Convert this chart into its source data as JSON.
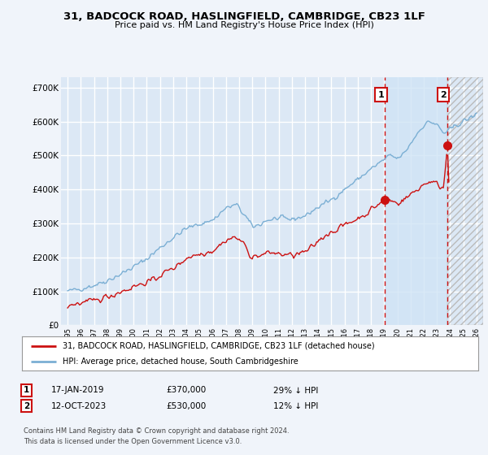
{
  "title1": "31, BADCOCK ROAD, HASLINGFIELD, CAMBRIDGE, CB23 1LF",
  "title2": "Price paid vs. HM Land Registry's House Price Index (HPI)",
  "background_color": "#f0f4fa",
  "plot_bg_color": "#dce8f5",
  "grid_color": "#ffffff",
  "hpi_color": "#7bafd4",
  "price_color": "#cc1111",
  "highlight_color": "#d0e4f5",
  "annotation1_date": "17-JAN-2019",
  "annotation1_price": "£370,000",
  "annotation1_hpi": "29% ↓ HPI",
  "annotation1_year": 2019.05,
  "annotation1_value": 370000,
  "annotation2_date": "12-OCT-2023",
  "annotation2_price": "£530,000",
  "annotation2_hpi": "12% ↓ HPI",
  "annotation2_year": 2023.79,
  "annotation2_value": 530000,
  "legend_label_price": "31, BADCOCK ROAD, HASLINGFIELD, CAMBRIDGE, CB23 1LF (detached house)",
  "legend_label_hpi": "HPI: Average price, detached house, South Cambridgeshire",
  "footer1": "Contains HM Land Registry data © Crown copyright and database right 2024.",
  "footer2": "This data is licensed under the Open Government Licence v3.0.",
  "ylim": [
    0,
    730000
  ],
  "yticks": [
    0,
    100000,
    200000,
    300000,
    400000,
    500000,
    600000,
    700000
  ],
  "ytick_labels": [
    "£0",
    "£100K",
    "£200K",
    "£300K",
    "£400K",
    "£500K",
    "£600K",
    "£700K"
  ],
  "xmin": 1994.5,
  "xmax": 2026.5
}
